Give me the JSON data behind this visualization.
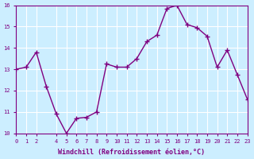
{
  "x": [
    0,
    1,
    2,
    3,
    4,
    5,
    6,
    7,
    8,
    9,
    10,
    11,
    12,
    13,
    14,
    15,
    16,
    17,
    18,
    19,
    20,
    21,
    22,
    23
  ],
  "y": [
    13.0,
    13.1,
    13.8,
    12.2,
    10.9,
    10.0,
    10.7,
    10.75,
    11.0,
    13.25,
    13.1,
    13.1,
    13.5,
    14.3,
    14.6,
    15.85,
    16.0,
    15.1,
    14.95,
    14.55,
    13.1,
    13.9,
    12.75,
    11.6
  ],
  "xlim": [
    0,
    23
  ],
  "ylim": [
    10,
    16
  ],
  "yticks": [
    10,
    11,
    12,
    13,
    14,
    15,
    16
  ],
  "xticks": [
    0,
    1,
    2,
    4,
    5,
    6,
    7,
    8,
    9,
    10,
    11,
    12,
    13,
    14,
    15,
    16,
    17,
    18,
    19,
    20,
    21,
    22,
    23
  ],
  "xlabel": "Windchill (Refroidissement éolien,°C)",
  "line_color": "#800080",
  "marker": "+",
  "bg_color": "#cceeff",
  "grid_color": "#ffffff",
  "tick_label_color": "#800080",
  "xlabel_color": "#800080"
}
